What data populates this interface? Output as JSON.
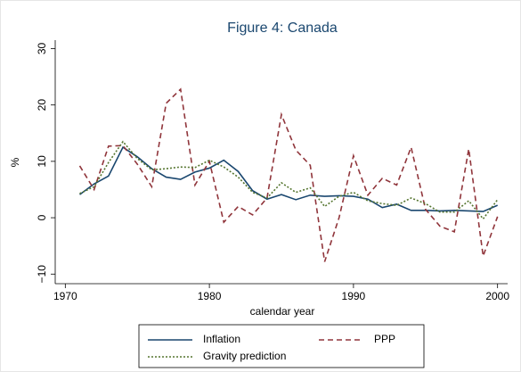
{
  "chart_data": {
    "type": "line",
    "title": "Figure 4: Canada",
    "x_label": "calendar year",
    "y_label": "%",
    "x": [
      1971,
      1972,
      1973,
      1974,
      1975,
      1976,
      1977,
      1978,
      1979,
      1980,
      1981,
      1982,
      1983,
      1984,
      1985,
      1986,
      1987,
      1988,
      1989,
      1990,
      1991,
      1992,
      1993,
      1994,
      1995,
      1996,
      1997,
      1998,
      1999,
      2000
    ],
    "series": [
      {
        "name": "Inflation",
        "color": "#1a476f",
        "style": "solid",
        "values": [
          4.1,
          6,
          7.4,
          12.5,
          10.8,
          8.7,
          7.2,
          6.8,
          8.1,
          8.8,
          10.2,
          8.2,
          4.8,
          3.3,
          4.1,
          3.2,
          4.0,
          3.8,
          3.9,
          3.8,
          3.3,
          1.8,
          2.4,
          1.3,
          1.3,
          1.2,
          1.3,
          1.2,
          1.1,
          2.2
        ]
      },
      {
        "name": "PPP",
        "color": "#90353b",
        "style": "dashed",
        "values": [
          9.2,
          5,
          12.7,
          12.8,
          9.5,
          5.5,
          20.3,
          22.8,
          5.8,
          10,
          -0.8,
          2,
          0.5,
          3.5,
          18.3,
          12,
          9.3,
          -7.8,
          0,
          11,
          4,
          7,
          5.8,
          12.5,
          1.5,
          -1.5,
          -2.5,
          12.2,
          -6.8,
          0.2
        ]
      },
      {
        "name": "Gravity prediction",
        "color": "#55752f",
        "style": "dotted",
        "values": [
          4.3,
          5.5,
          9.8,
          13.5,
          10.5,
          8.5,
          8.7,
          9,
          8.9,
          10.2,
          9,
          7.2,
          4.5,
          3.5,
          6.2,
          4.5,
          5.3,
          2,
          3.8,
          4.5,
          3,
          2.5,
          2.2,
          3.5,
          2.5,
          1,
          1,
          3,
          -0.2,
          3.2
        ]
      }
    ],
    "xlim": [
      1969.3,
      2000.7
    ],
    "xticks": [
      1970,
      1980,
      1990,
      2000
    ],
    "ylim": [
      -11.7,
      31.5
    ],
    "yticks": [
      {
        "value": -10,
        "label": "−10"
      },
      0,
      10,
      20,
      30
    ]
  }
}
